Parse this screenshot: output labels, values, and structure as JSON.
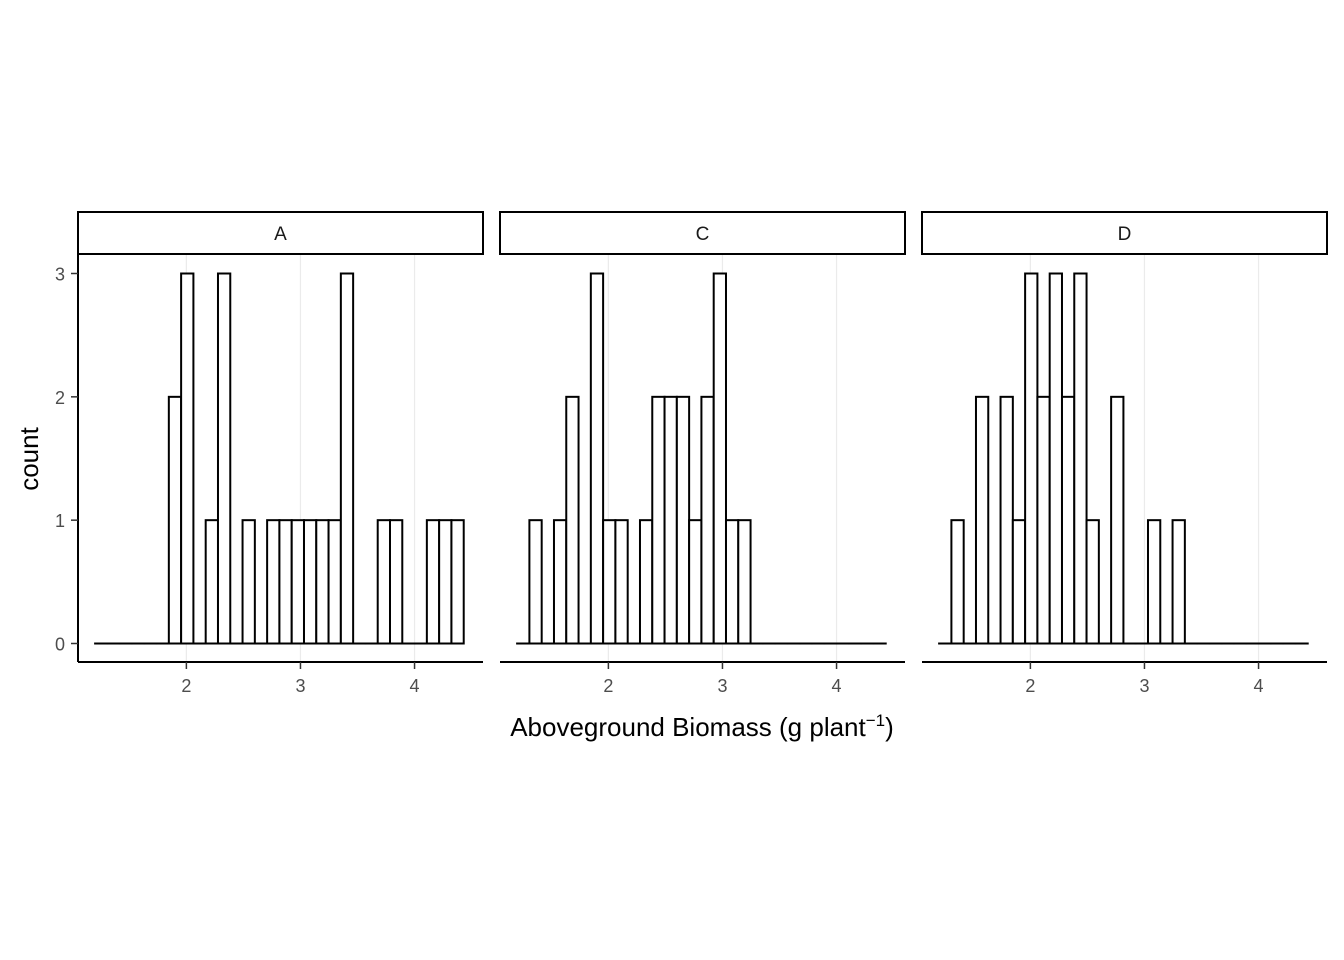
{
  "chart_data": {
    "type": "histogram",
    "facet_labels": [
      "A",
      "C",
      "D"
    ],
    "xlabel": "Aboveground Biomass (g plant",
    "xlabel_superscript": "−1",
    "xlabel_suffix": ")",
    "ylabel": "count",
    "xlim": [
      1.05,
      4.6
    ],
    "ylim": [
      -0.15,
      3.15
    ],
    "x_ticks": [
      2,
      3,
      4
    ],
    "x_tick_labels": [
      "2",
      "3",
      "4"
    ],
    "y_ticks": [
      0,
      1,
      2,
      3
    ],
    "y_tick_labels": [
      "0",
      "1",
      "2",
      "3"
    ],
    "bin_start": 1.2,
    "bin_width": 0.1077,
    "bins": 30,
    "panels": [
      {
        "label": "A",
        "counts": [
          0,
          0,
          0,
          0,
          0,
          0,
          2,
          3,
          0,
          1,
          3,
          0,
          1,
          0,
          1,
          1,
          1,
          1,
          1,
          1,
          3,
          0,
          0,
          1,
          1,
          0,
          0,
          1,
          1,
          1
        ]
      },
      {
        "label": "C",
        "counts": [
          0,
          1,
          0,
          1,
          2,
          0,
          3,
          1,
          1,
          0,
          1,
          2,
          2,
          2,
          1,
          2,
          3,
          1,
          1,
          0,
          0,
          0,
          0,
          0,
          0,
          0,
          0,
          0,
          0,
          0
        ]
      },
      {
        "label": "D",
        "counts": [
          0,
          1,
          0,
          2,
          0,
          2,
          1,
          3,
          2,
          3,
          2,
          3,
          1,
          0,
          2,
          0,
          0,
          1,
          0,
          1,
          0,
          0,
          0,
          0,
          0,
          0,
          0,
          0,
          0,
          0
        ]
      }
    ],
    "colors": {
      "bar_fill": "#ffffff",
      "bar_stroke": "#000000",
      "grid": "#ebebeb",
      "strip_fill": "#ffffff",
      "axis": "#000000"
    },
    "grid": "major-x"
  }
}
